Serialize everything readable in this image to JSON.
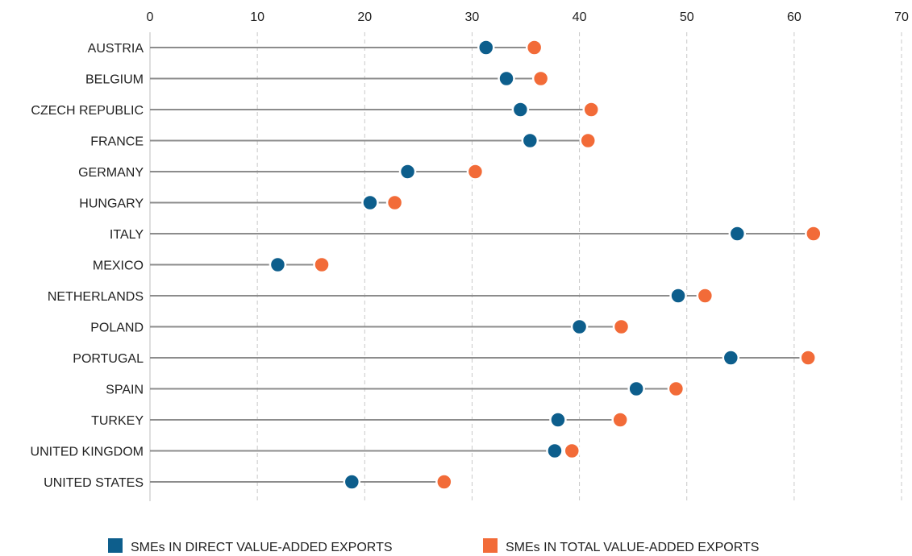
{
  "chart_data": {
    "type": "dot-plot",
    "title": "",
    "xlabel": "",
    "ylabel": "",
    "xlim": [
      0,
      70
    ],
    "x_ticks": [
      "0",
      "10",
      "20",
      "30",
      "40",
      "50",
      "60",
      "70"
    ],
    "x_axis_position": "top",
    "grid": "vertical dashed",
    "legend_position": "bottom",
    "categories": [
      "AUSTRIA",
      "BELGIUM",
      "CZECH REPUBLIC",
      "FRANCE",
      "GERMANY",
      "HUNGARY",
      "ITALY",
      "MEXICO",
      "NETHERLANDS",
      "POLAND",
      "PORTUGAL",
      "SPAIN",
      "TURKEY",
      "UNITED KINGDOM",
      "UNITED STATES"
    ],
    "series": [
      {
        "name": "SMEs IN DIRECT VALUE-ADDED EXPORTS",
        "color": "#0d5e8c",
        "values": [
          31.3,
          33.2,
          34.5,
          35.4,
          24.0,
          20.5,
          54.7,
          11.9,
          49.2,
          40.0,
          54.1,
          45.3,
          38.0,
          37.7,
          18.8
        ]
      },
      {
        "name": "SMEs IN TOTAL VALUE-ADDED EXPORTS",
        "color": "#f26b38",
        "values": [
          35.8,
          36.4,
          41.1,
          40.8,
          30.3,
          22.8,
          61.8,
          16.0,
          51.7,
          43.9,
          61.3,
          49.0,
          43.8,
          39.3,
          27.4
        ]
      }
    ],
    "stem_color": "#8c8c8c"
  }
}
